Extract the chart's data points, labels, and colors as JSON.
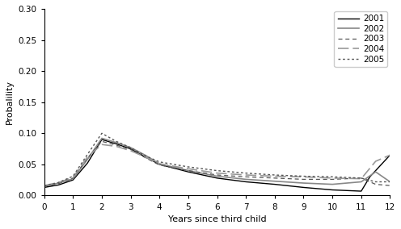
{
  "title_ylabel": "Probalility",
  "xlabel": "Years since third child",
  "xlim": [
    0,
    12
  ],
  "ylim": [
    0,
    0.3
  ],
  "yticks": [
    0,
    0.05,
    0.1,
    0.15,
    0.2,
    0.25,
    0.3
  ],
  "xticks": [
    0,
    1,
    2,
    3,
    4,
    5,
    6,
    7,
    8,
    9,
    10,
    11,
    12
  ],
  "series": {
    "2001": {
      "x": [
        0,
        0.5,
        1,
        1.5,
        2,
        2.5,
        3,
        3.5,
        4,
        5,
        6,
        7,
        8,
        9,
        10,
        11,
        11.3,
        12
      ],
      "y": [
        0.013,
        0.017,
        0.025,
        0.052,
        0.09,
        0.083,
        0.075,
        0.062,
        0.05,
        0.038,
        0.028,
        0.022,
        0.018,
        0.013,
        0.009,
        0.007,
        0.03,
        0.065
      ],
      "color": "#000000",
      "linestyle": "solid",
      "linewidth": 1.0,
      "dashes": null
    },
    "2002": {
      "x": [
        0,
        0.5,
        1,
        1.5,
        2,
        2.5,
        3,
        3.5,
        4,
        5,
        6,
        7,
        8,
        9,
        10,
        11,
        11.5,
        12
      ],
      "y": [
        0.015,
        0.02,
        0.027,
        0.058,
        0.092,
        0.085,
        0.077,
        0.065,
        0.051,
        0.04,
        0.031,
        0.026,
        0.023,
        0.02,
        0.018,
        0.022,
        0.038,
        0.022
      ],
      "color": "#888888",
      "linestyle": "solid",
      "linewidth": 1.2,
      "dashes": null
    },
    "2003": {
      "x": [
        0,
        0.5,
        1,
        1.5,
        2,
        2.5,
        3,
        3.5,
        4,
        5,
        6,
        7,
        8,
        9,
        10,
        11,
        11.5,
        12
      ],
      "y": [
        0.015,
        0.019,
        0.028,
        0.06,
        0.087,
        0.081,
        0.074,
        0.061,
        0.049,
        0.04,
        0.033,
        0.03,
        0.028,
        0.026,
        0.026,
        0.028,
        0.018,
        0.016
      ],
      "color": "#555555",
      "linestyle": "dashed",
      "linewidth": 0.9,
      "dashes": [
        4,
        3
      ]
    },
    "2004": {
      "x": [
        0,
        0.5,
        1,
        1.5,
        2,
        2.5,
        3,
        3.5,
        4,
        5,
        6,
        7,
        8,
        9,
        10,
        11,
        11.5,
        12
      ],
      "y": [
        0.016,
        0.021,
        0.029,
        0.062,
        0.082,
        0.079,
        0.072,
        0.062,
        0.051,
        0.043,
        0.036,
        0.033,
        0.031,
        0.03,
        0.028,
        0.027,
        0.055,
        0.065
      ],
      "color": "#999999",
      "linestyle": "dashed",
      "linewidth": 1.2,
      "dashes": [
        8,
        3
      ]
    },
    "2005": {
      "x": [
        0,
        0.5,
        1,
        1.5,
        2,
        2.5,
        3,
        3.5,
        4,
        5,
        6,
        7,
        8,
        9,
        10,
        11,
        11.5,
        12
      ],
      "y": [
        0.015,
        0.021,
        0.031,
        0.066,
        0.1,
        0.087,
        0.077,
        0.064,
        0.054,
        0.046,
        0.04,
        0.036,
        0.033,
        0.031,
        0.03,
        0.028,
        0.022,
        0.022
      ],
      "color": "#555555",
      "linestyle": "dotted",
      "linewidth": 1.0,
      "dashes": [
        2,
        2
      ]
    }
  },
  "legend_order": [
    "2001",
    "2002",
    "2003",
    "2004",
    "2005"
  ],
  "figsize": [
    4.96,
    2.84
  ],
  "dpi": 100
}
